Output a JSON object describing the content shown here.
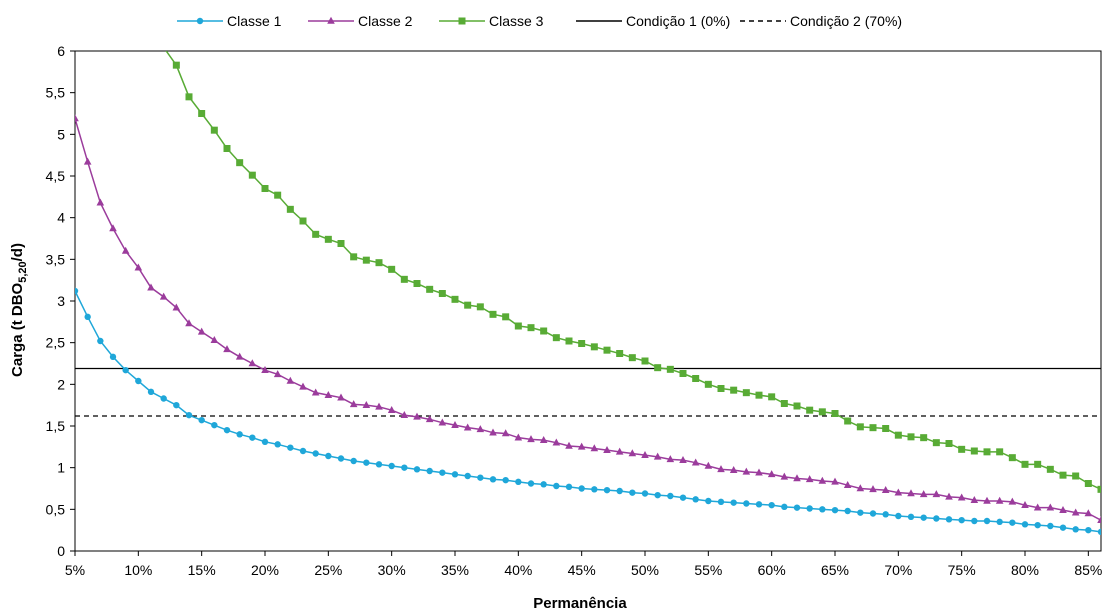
{
  "chart_data": {
    "type": "line",
    "title": "",
    "xlabel": "Permanência",
    "ylabel": {
      "main": "Carga (t DBO",
      "sub": "5,20",
      "tail": "/d)"
    },
    "xlim": [
      5,
      86
    ],
    "ylim": [
      0,
      6
    ],
    "x_ticks": [
      5,
      10,
      15,
      20,
      25,
      30,
      35,
      40,
      45,
      50,
      55,
      60,
      65,
      70,
      75,
      80,
      85
    ],
    "x_tick_labels": [
      "5%",
      "10%",
      "15%",
      "20%",
      "25%",
      "30%",
      "35%",
      "40%",
      "45%",
      "50%",
      "55%",
      "60%",
      "65%",
      "70%",
      "75%",
      "80%",
      "85%"
    ],
    "y_ticks": [
      0,
      0.5,
      1,
      1.5,
      2,
      2.5,
      3,
      3.5,
      4,
      4.5,
      5,
      5.5,
      6
    ],
    "y_tick_labels": [
      "0",
      "0,5",
      "1",
      "1,5",
      "2",
      "2,5",
      "3",
      "3,5",
      "4",
      "4,5",
      "5",
      "5,5",
      "6"
    ],
    "grid": false,
    "legend": {
      "position": "top"
    },
    "series": [
      {
        "name": "Classe 1",
        "color": "#1fa7d9",
        "marker": "circle",
        "points": [
          [
            5,
            3.12
          ],
          [
            6,
            2.81
          ],
          [
            7,
            2.52
          ],
          [
            8,
            2.33
          ],
          [
            9,
            2.17
          ],
          [
            10,
            2.04
          ],
          [
            11,
            1.91
          ],
          [
            12,
            1.83
          ],
          [
            13,
            1.75
          ],
          [
            14,
            1.63
          ],
          [
            15,
            1.57
          ],
          [
            16,
            1.51
          ],
          [
            17,
            1.45
          ],
          [
            18,
            1.4
          ],
          [
            19,
            1.36
          ],
          [
            20,
            1.31
          ],
          [
            21,
            1.28
          ],
          [
            22,
            1.24
          ],
          [
            23,
            1.2
          ],
          [
            24,
            1.17
          ],
          [
            25,
            1.14
          ],
          [
            26,
            1.11
          ],
          [
            27,
            1.08
          ],
          [
            28,
            1.06
          ],
          [
            29,
            1.04
          ],
          [
            30,
            1.02
          ],
          [
            31,
            1.0
          ],
          [
            32,
            0.98
          ],
          [
            33,
            0.96
          ],
          [
            34,
            0.94
          ],
          [
            35,
            0.92
          ],
          [
            36,
            0.9
          ],
          [
            37,
            0.88
          ],
          [
            38,
            0.86
          ],
          [
            39,
            0.85
          ],
          [
            40,
            0.83
          ],
          [
            41,
            0.81
          ],
          [
            42,
            0.8
          ],
          [
            43,
            0.78
          ],
          [
            44,
            0.77
          ],
          [
            45,
            0.75
          ],
          [
            46,
            0.74
          ],
          [
            47,
            0.73
          ],
          [
            48,
            0.72
          ],
          [
            49,
            0.7
          ],
          [
            50,
            0.69
          ],
          [
            51,
            0.67
          ],
          [
            52,
            0.66
          ],
          [
            53,
            0.64
          ],
          [
            54,
            0.62
          ],
          [
            55,
            0.6
          ],
          [
            56,
            0.59
          ],
          [
            57,
            0.58
          ],
          [
            58,
            0.57
          ],
          [
            59,
            0.56
          ],
          [
            60,
            0.55
          ],
          [
            61,
            0.53
          ],
          [
            62,
            0.52
          ],
          [
            63,
            0.51
          ],
          [
            64,
            0.5
          ],
          [
            65,
            0.49
          ],
          [
            66,
            0.48
          ],
          [
            67,
            0.46
          ],
          [
            68,
            0.45
          ],
          [
            69,
            0.44
          ],
          [
            70,
            0.42
          ],
          [
            71,
            0.41
          ],
          [
            72,
            0.4
          ],
          [
            73,
            0.39
          ],
          [
            74,
            0.38
          ],
          [
            75,
            0.37
          ],
          [
            76,
            0.36
          ],
          [
            77,
            0.36
          ],
          [
            78,
            0.35
          ],
          [
            79,
            0.34
          ],
          [
            80,
            0.32
          ],
          [
            81,
            0.31
          ],
          [
            82,
            0.3
          ],
          [
            83,
            0.28
          ],
          [
            84,
            0.26
          ],
          [
            85,
            0.25
          ],
          [
            86,
            0.23
          ]
        ]
      },
      {
        "name": "Classe 2",
        "color": "#9b3c9c",
        "marker": "triangle",
        "points": [
          [
            5,
            5.19
          ],
          [
            6,
            4.67
          ],
          [
            7,
            4.18
          ],
          [
            8,
            3.87
          ],
          [
            9,
            3.6
          ],
          [
            10,
            3.4
          ],
          [
            11,
            3.16
          ],
          [
            12,
            3.05
          ],
          [
            13,
            2.92
          ],
          [
            14,
            2.73
          ],
          [
            15,
            2.63
          ],
          [
            16,
            2.53
          ],
          [
            17,
            2.42
          ],
          [
            18,
            2.33
          ],
          [
            19,
            2.25
          ],
          [
            20,
            2.17
          ],
          [
            21,
            2.12
          ],
          [
            22,
            2.04
          ],
          [
            23,
            1.97
          ],
          [
            24,
            1.9
          ],
          [
            25,
            1.87
          ],
          [
            26,
            1.84
          ],
          [
            27,
            1.76
          ],
          [
            28,
            1.75
          ],
          [
            29,
            1.73
          ],
          [
            30,
            1.69
          ],
          [
            31,
            1.63
          ],
          [
            32,
            1.61
          ],
          [
            33,
            1.58
          ],
          [
            34,
            1.54
          ],
          [
            35,
            1.51
          ],
          [
            36,
            1.48
          ],
          [
            37,
            1.46
          ],
          [
            38,
            1.42
          ],
          [
            39,
            1.41
          ],
          [
            40,
            1.36
          ],
          [
            41,
            1.34
          ],
          [
            42,
            1.33
          ],
          [
            43,
            1.3
          ],
          [
            44,
            1.26
          ],
          [
            45,
            1.25
          ],
          [
            46,
            1.23
          ],
          [
            47,
            1.21
          ],
          [
            48,
            1.19
          ],
          [
            49,
            1.17
          ],
          [
            50,
            1.15
          ],
          [
            51,
            1.13
          ],
          [
            52,
            1.1
          ],
          [
            53,
            1.09
          ],
          [
            54,
            1.06
          ],
          [
            55,
            1.02
          ],
          [
            56,
            0.98
          ],
          [
            57,
            0.97
          ],
          [
            58,
            0.95
          ],
          [
            59,
            0.94
          ],
          [
            60,
            0.92
          ],
          [
            61,
            0.89
          ],
          [
            62,
            0.87
          ],
          [
            63,
            0.86
          ],
          [
            64,
            0.84
          ],
          [
            65,
            0.83
          ],
          [
            66,
            0.79
          ],
          [
            67,
            0.75
          ],
          [
            68,
            0.74
          ],
          [
            69,
            0.73
          ],
          [
            70,
            0.7
          ],
          [
            71,
            0.69
          ],
          [
            72,
            0.68
          ],
          [
            73,
            0.68
          ],
          [
            74,
            0.65
          ],
          [
            75,
            0.64
          ],
          [
            76,
            0.61
          ],
          [
            77,
            0.6
          ],
          [
            78,
            0.6
          ],
          [
            79,
            0.59
          ],
          [
            80,
            0.55
          ],
          [
            81,
            0.52
          ],
          [
            82,
            0.52
          ],
          [
            83,
            0.49
          ],
          [
            84,
            0.46
          ],
          [
            85,
            0.45
          ],
          [
            86,
            0.37
          ]
        ]
      },
      {
        "name": "Classe 3",
        "color": "#58ab35",
        "marker": "square",
        "points": [
          [
            12.2,
            6.0
          ],
          [
            13,
            5.83
          ],
          [
            14,
            5.45
          ],
          [
            15,
            5.25
          ],
          [
            16,
            5.05
          ],
          [
            17,
            4.83
          ],
          [
            18,
            4.66
          ],
          [
            19,
            4.51
          ],
          [
            20,
            4.35
          ],
          [
            21,
            4.27
          ],
          [
            22,
            4.1
          ],
          [
            23,
            3.96
          ],
          [
            24,
            3.8
          ],
          [
            25,
            3.74
          ],
          [
            26,
            3.69
          ],
          [
            27,
            3.53
          ],
          [
            28,
            3.49
          ],
          [
            29,
            3.46
          ],
          [
            30,
            3.38
          ],
          [
            31,
            3.26
          ],
          [
            32,
            3.21
          ],
          [
            33,
            3.14
          ],
          [
            34,
            3.09
          ],
          [
            35,
            3.02
          ],
          [
            36,
            2.95
          ],
          [
            37,
            2.93
          ],
          [
            38,
            2.84
          ],
          [
            39,
            2.81
          ],
          [
            40,
            2.7
          ],
          [
            41,
            2.68
          ],
          [
            42,
            2.64
          ],
          [
            43,
            2.56
          ],
          [
            44,
            2.52
          ],
          [
            45,
            2.49
          ],
          [
            46,
            2.45
          ],
          [
            47,
            2.41
          ],
          [
            48,
            2.37
          ],
          [
            49,
            2.32
          ],
          [
            50,
            2.28
          ],
          [
            51,
            2.2
          ],
          [
            52,
            2.18
          ],
          [
            53,
            2.13
          ],
          [
            54,
            2.07
          ],
          [
            55,
            2.0
          ],
          [
            56,
            1.95
          ],
          [
            57,
            1.93
          ],
          [
            58,
            1.9
          ],
          [
            59,
            1.87
          ],
          [
            60,
            1.85
          ],
          [
            61,
            1.77
          ],
          [
            62,
            1.74
          ],
          [
            63,
            1.69
          ],
          [
            64,
            1.67
          ],
          [
            65,
            1.65
          ],
          [
            66,
            1.56
          ],
          [
            67,
            1.49
          ],
          [
            68,
            1.48
          ],
          [
            69,
            1.47
          ],
          [
            70,
            1.39
          ],
          [
            71,
            1.37
          ],
          [
            72,
            1.36
          ],
          [
            73,
            1.3
          ],
          [
            74,
            1.29
          ],
          [
            75,
            1.22
          ],
          [
            76,
            1.2
          ],
          [
            77,
            1.19
          ],
          [
            78,
            1.19
          ],
          [
            79,
            1.12
          ],
          [
            80,
            1.04
          ],
          [
            81,
            1.04
          ],
          [
            82,
            0.98
          ],
          [
            83,
            0.91
          ],
          [
            84,
            0.9
          ],
          [
            85,
            0.81
          ],
          [
            86,
            0.74
          ]
        ]
      }
    ],
    "reference_lines": [
      {
        "name": "Condição 1 (0%)",
        "y": 2.19,
        "style": "solid",
        "color": "#000000"
      },
      {
        "name": "Condição 2 (70%)",
        "y": 1.62,
        "style": "dashed",
        "color": "#000000"
      }
    ]
  }
}
